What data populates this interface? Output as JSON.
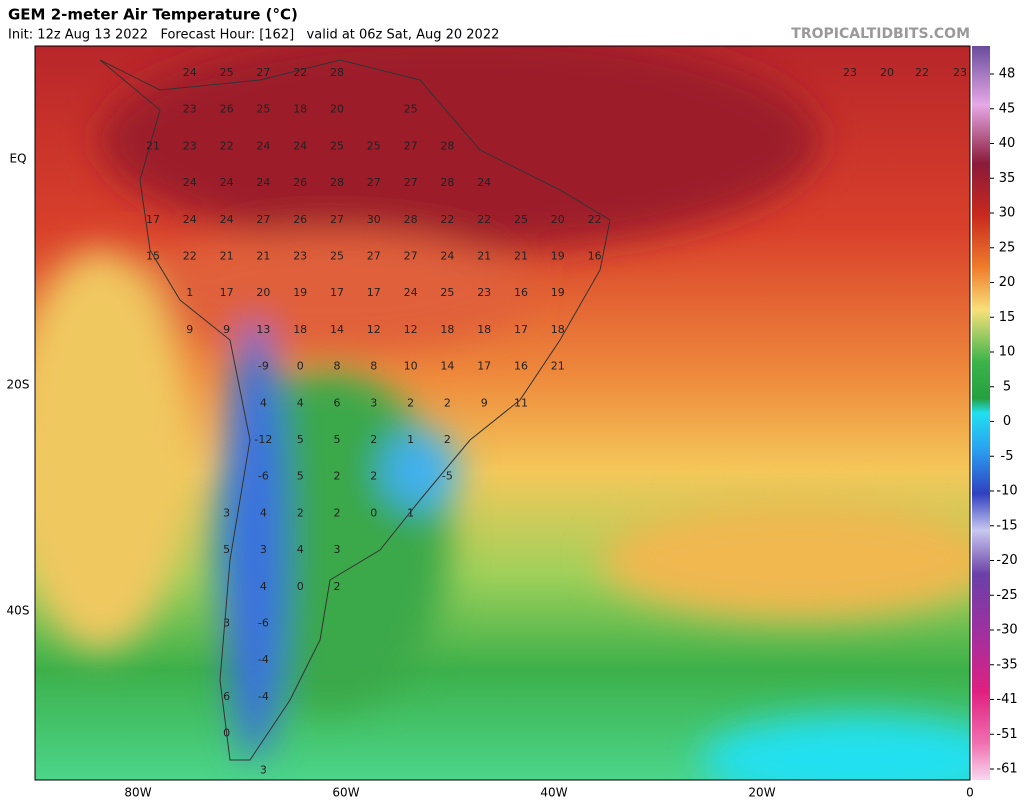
{
  "header": {
    "title": "GEM 2-meter Air Temperature (°C)",
    "subtitle": "Init: 12z Aug 13 2022   Forecast Hour: [162]   valid at 06z Sat, Aug 20 2022",
    "source": "TROPICALTIDBITS.COM"
  },
  "axes": {
    "longitudes": [
      "80W",
      "60W",
      "40W",
      "20W",
      "0"
    ],
    "latitudes": [
      "EQ",
      "20S",
      "40S"
    ]
  },
  "colorbar": {
    "ticks": [
      48,
      45,
      40,
      35,
      30,
      25,
      20,
      15,
      10,
      5,
      0,
      -5,
      -10,
      -15,
      -20,
      -25,
      -30,
      -35,
      -41,
      -51,
      -61
    ]
  },
  "map": {
    "labels": [
      [
        null,
        24,
        25,
        27,
        22,
        28
      ],
      [
        null,
        23,
        26,
        25,
        18,
        20,
        null,
        25
      ],
      [
        21,
        23,
        22,
        24,
        24,
        25,
        25,
        27,
        28
      ],
      [
        null,
        24,
        24,
        24,
        26,
        28,
        27,
        27,
        28,
        24
      ],
      [
        17,
        24,
        24,
        27,
        26,
        27,
        30,
        28,
        22,
        22,
        25,
        20,
        22
      ],
      [
        15,
        22,
        21,
        21,
        23,
        25,
        27,
        27,
        24,
        21,
        21,
        19,
        16
      ],
      [
        null,
        1,
        17,
        20,
        19,
        17,
        17,
        24,
        25,
        23,
        16,
        19
      ],
      [
        null,
        9,
        9,
        13,
        18,
        14,
        12,
        12,
        18,
        18,
        17,
        18
      ],
      [
        null,
        null,
        null,
        -9,
        0,
        8,
        8,
        10,
        14,
        17,
        16,
        21
      ],
      [
        null,
        null,
        null,
        4,
        4,
        6,
        3,
        2,
        2,
        9,
        11
      ],
      [
        null,
        null,
        null,
        -12,
        5,
        5,
        2,
        1,
        2
      ],
      [
        null,
        null,
        null,
        -6,
        5,
        2,
        2,
        null,
        -5
      ],
      [
        null,
        null,
        3,
        4,
        2,
        2,
        0,
        1
      ],
      [
        null,
        null,
        5,
        3,
        4,
        3
      ],
      [
        null,
        null,
        null,
        4,
        0,
        2
      ],
      [
        null,
        null,
        3,
        -6
      ],
      [
        null,
        null,
        null,
        -4
      ],
      [
        null,
        null,
        6,
        -4
      ],
      [
        null,
        null,
        0
      ],
      [
        null,
        null,
        null,
        3
      ]
    ],
    "africa_labels": [
      23,
      20,
      22,
      23
    ]
  }
}
